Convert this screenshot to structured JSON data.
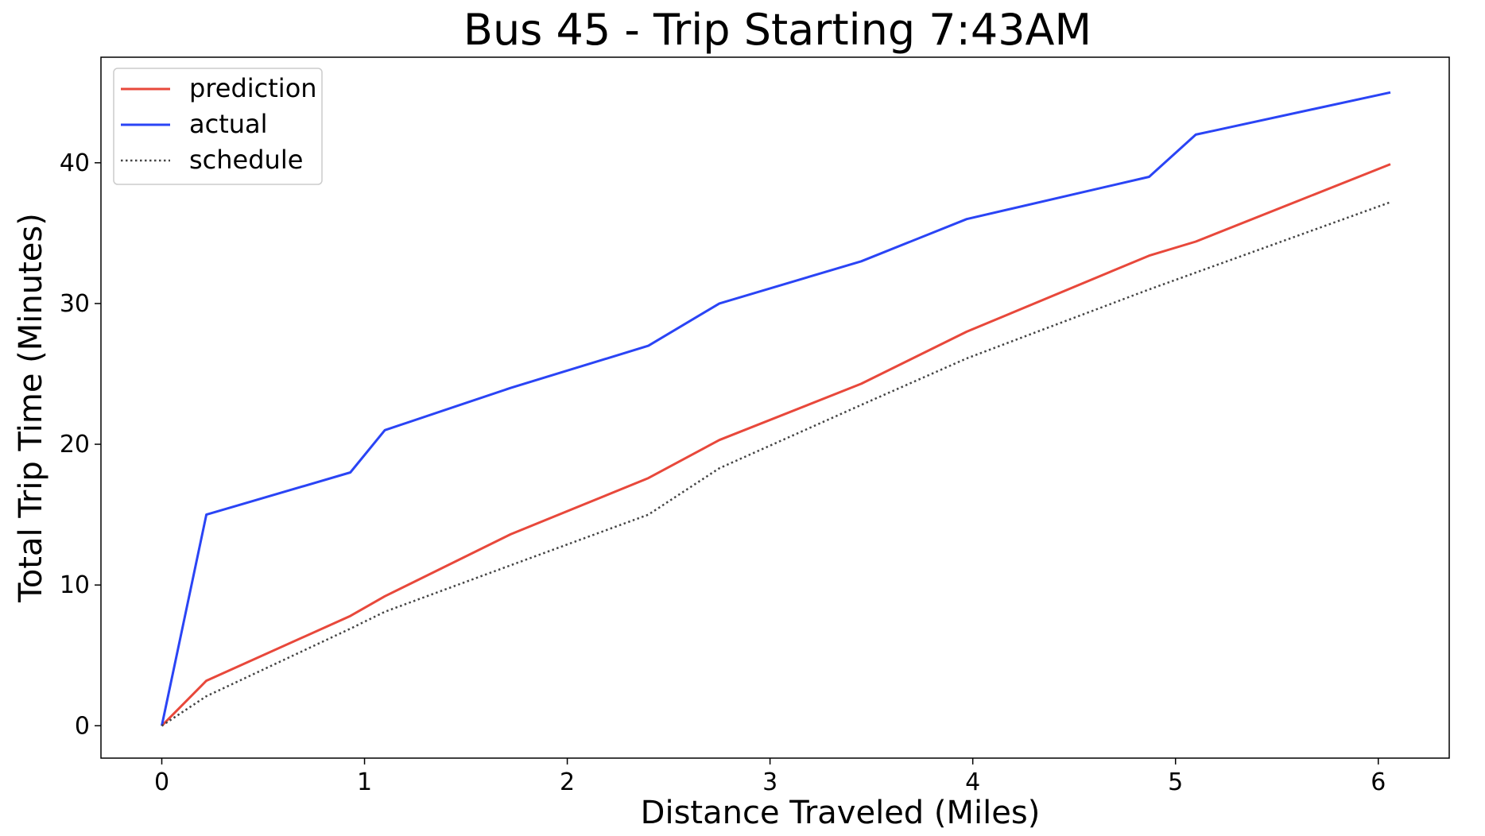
{
  "chart_data": {
    "type": "line",
    "title": "Bus 45 - Trip Starting 7:43AM",
    "xlabel": "Distance Traveled (Miles)",
    "ylabel": "Total Trip Time (Minutes)",
    "xlim": [
      -0.3,
      6.35
    ],
    "ylim": [
      -2.3,
      47.5
    ],
    "xticks": [
      0,
      1,
      2,
      3,
      4,
      5,
      6
    ],
    "yticks": [
      0,
      10,
      20,
      30,
      40
    ],
    "grid": false,
    "legend_position": "top-left",
    "series": [
      {
        "name": "prediction",
        "color": "#e8483b",
        "style": "solid",
        "x": [
          0,
          0.22,
          0.93,
          1.1,
          1.72,
          2.4,
          2.75,
          3.45,
          3.97,
          4.87,
          5.1,
          6.06
        ],
        "y": [
          0,
          3.2,
          7.8,
          9.2,
          13.6,
          17.6,
          20.3,
          24.3,
          28.0,
          33.4,
          34.4,
          39.9
        ]
      },
      {
        "name": "actual",
        "color": "#2a44f5",
        "style": "solid",
        "x": [
          0,
          0.22,
          0.93,
          1.1,
          1.72,
          2.4,
          2.75,
          3.45,
          3.97,
          4.87,
          5.1,
          6.06
        ],
        "y": [
          0,
          15,
          18,
          21,
          24,
          27,
          30,
          33,
          36,
          39,
          42,
          45
        ]
      },
      {
        "name": "schedule",
        "color": "#444444",
        "style": "dotted",
        "x": [
          0,
          0.22,
          0.93,
          1.1,
          1.72,
          2.4,
          2.75,
          3.45,
          3.97,
          4.87,
          5.1,
          6.06
        ],
        "y": [
          0,
          2.1,
          6.9,
          8.1,
          11.4,
          15.0,
          18.3,
          22.8,
          26.1,
          31.0,
          32.2,
          37.2
        ]
      }
    ]
  }
}
